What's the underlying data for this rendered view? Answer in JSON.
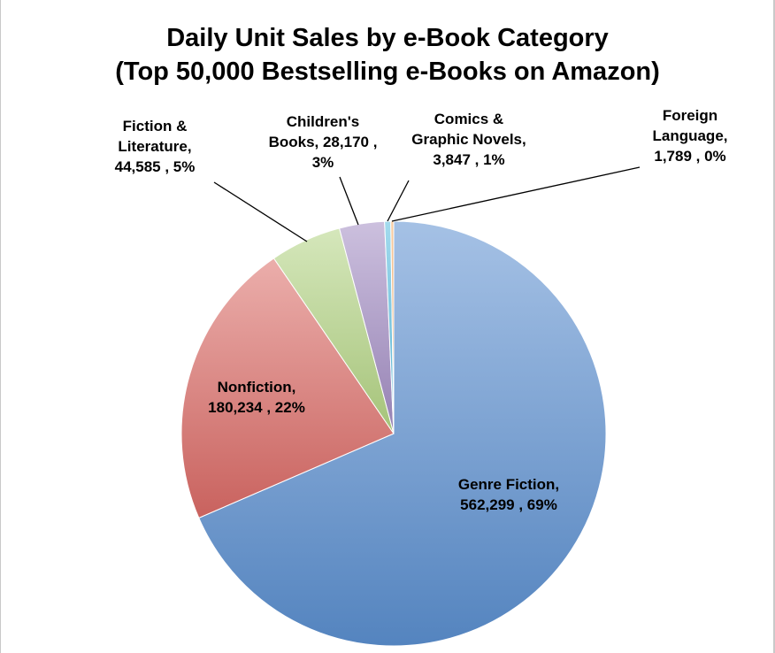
{
  "chart_data": {
    "type": "pie",
    "title": [
      "Daily Unit Sales by e-Book Category",
      "(Top 50,000 Bestselling e-Books on Amazon)"
    ],
    "legend": "none",
    "slices": [
      {
        "category": "Genre Fiction",
        "value": 562299,
        "percent": "69%",
        "color": "#5b8fd0",
        "label_lines": [
          "Genre Fiction,",
          "562,299 , 69%"
        ]
      },
      {
        "category": "Nonfiction",
        "value": 180234,
        "percent": "22%",
        "color": "#db6b66",
        "label_lines": [
          "Nonfiction,",
          "180,234 , 22%"
        ]
      },
      {
        "category": "Fiction & Literature",
        "value": 44585,
        "percent": "5%",
        "color": "#b3d483",
        "label_lines": [
          "Fiction &",
          "Literature,",
          "44,585 , 5%"
        ]
      },
      {
        "category": "Children's Books",
        "value": 28170,
        "percent": "3%",
        "color": "#a28cc3",
        "label_lines": [
          "Children's",
          "Books,  28,170 ,",
          "3%"
        ]
      },
      {
        "category": "Comics & Graphic Novels",
        "value": 3847,
        "percent": "1%",
        "color": "#58bde0",
        "label_lines": [
          "Comics &",
          "Graphic Novels,",
          "3,847 , 1%"
        ]
      },
      {
        "category": "Foreign Language",
        "value": 1789,
        "percent": "0%",
        "color": "#f4a65b",
        "label_lines": [
          "Foreign",
          "Language,",
          "1,789 , 0%"
        ]
      }
    ]
  }
}
